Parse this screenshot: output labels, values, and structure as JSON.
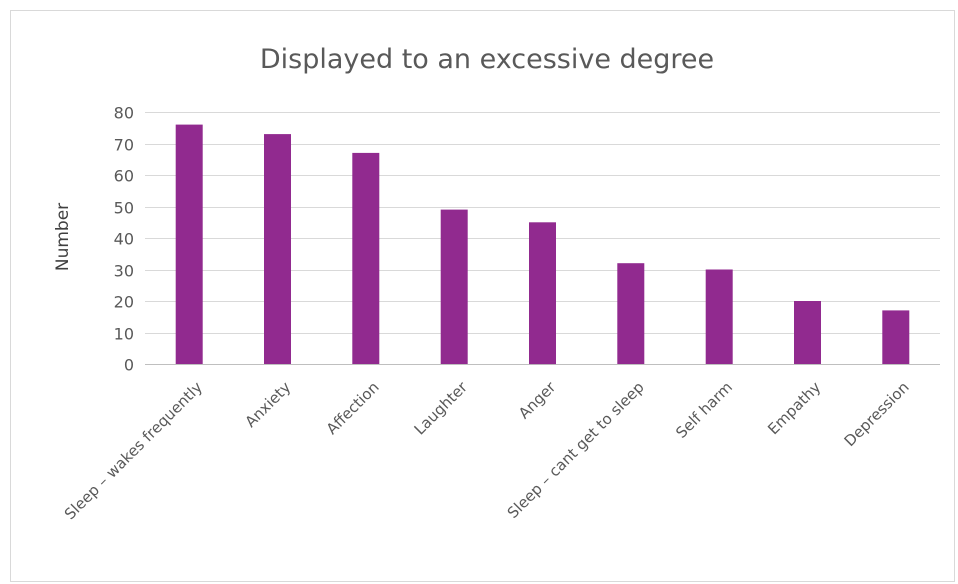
{
  "chart_data": {
    "type": "bar",
    "title": "Displayed to an excessive degree",
    "xlabel": "",
    "ylabel": "Number",
    "ylim": [
      0,
      80
    ],
    "y_ticks": [
      "0",
      "10",
      "20",
      "30",
      "40",
      "50",
      "60",
      "70",
      "80"
    ],
    "grid": true,
    "legend": "none",
    "bar_color": "#912a8f",
    "categories": [
      "Sleep – wakes frequently",
      "Anxiety",
      "Affection",
      "Laughter",
      "Anger",
      "Sleep – cant get to sleep",
      "Self harm",
      "Empathy",
      "Depression"
    ],
    "values": [
      76,
      73,
      67,
      49,
      45,
      32,
      30,
      20,
      17
    ]
  }
}
